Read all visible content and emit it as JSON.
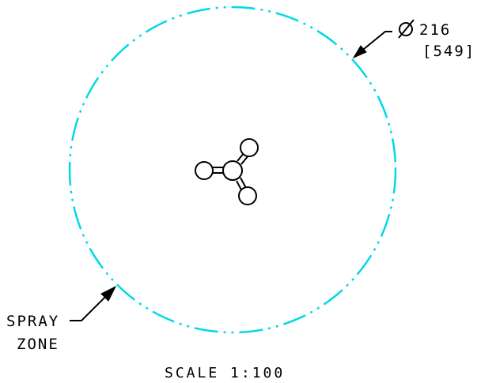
{
  "diagram": {
    "spray_zone": {
      "label_line1": "SPRAY",
      "label_line2": "ZONE",
      "outline_color": "#00d8e8"
    },
    "diameter_dimension": {
      "symbol": "Ø",
      "value": "216",
      "alternate": "[549]"
    },
    "scale_note": "SCALE 1:100",
    "ink_color": "#000000"
  }
}
